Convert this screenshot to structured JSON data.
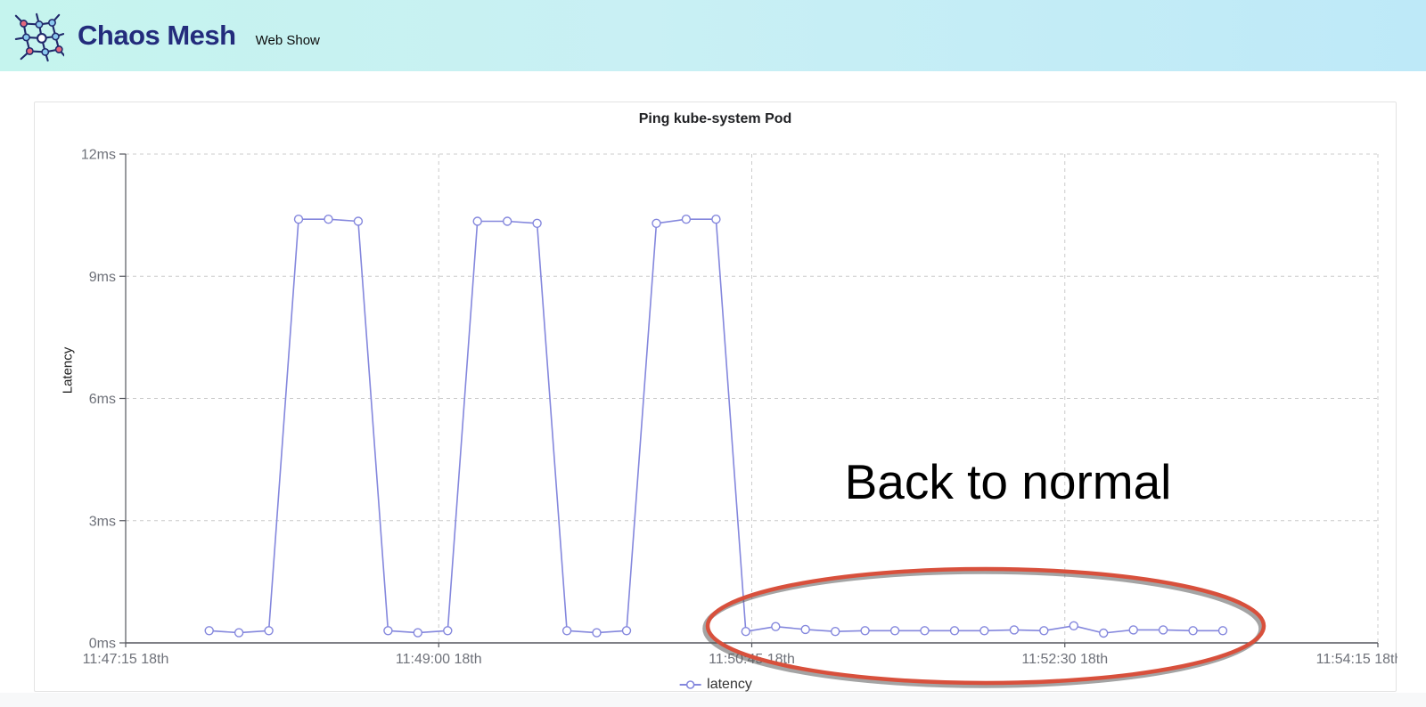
{
  "header": {
    "brand": "Chaos Mesh",
    "subtitle": "Web Show"
  },
  "chart": {
    "annotation": {
      "text": "Back to normal"
    },
    "colors": {
      "series": "#8487dd",
      "marker_fill": "#ffffff",
      "axis": "#55575e",
      "grid": "#cccccc",
      "tick_label": "#6e7179",
      "title": "#202124",
      "annotation_stroke": "#d8503c",
      "annotation_shadow": "#595959",
      "header_gradient_left": "#c5f4ee",
      "header_gradient_right": "#bee9f8",
      "brand_text": "#232c7c"
    }
  },
  "chart_data": {
    "type": "line",
    "title": "Ping kube-system Pod",
    "xlabel": "",
    "ylabel": "Latency",
    "ylim": [
      0,
      12
    ],
    "grid": true,
    "legend_position": "bottom",
    "y_ticks": [
      {
        "label": "0ms",
        "value": 0
      },
      {
        "label": "3ms",
        "value": 3
      },
      {
        "label": "6ms",
        "value": 6
      },
      {
        "label": "9ms",
        "value": 9
      },
      {
        "label": "12ms",
        "value": 12
      }
    ],
    "x_range": [
      "11:47:15",
      "11:54:15"
    ],
    "x_ticks": [
      {
        "label": "11:47:15 18th",
        "time": "11:47:15"
      },
      {
        "label": "11:49:00 18th",
        "time": "11:49:00"
      },
      {
        "label": "11:50:45 18th",
        "time": "11:50:45"
      },
      {
        "label": "11:52:30 18th",
        "time": "11:52:30"
      },
      {
        "label": "11:54:15 18th",
        "time": "11:54:15"
      }
    ],
    "series": [
      {
        "name": "latency",
        "unit": "ms",
        "points": [
          [
            "11:47:43",
            0.3
          ],
          [
            "11:47:53",
            0.25
          ],
          [
            "11:48:03",
            0.3
          ],
          [
            "11:48:13",
            10.4
          ],
          [
            "11:48:23",
            10.4
          ],
          [
            "11:48:33",
            10.35
          ],
          [
            "11:48:43",
            0.3
          ],
          [
            "11:48:53",
            0.25
          ],
          [
            "11:49:03",
            0.3
          ],
          [
            "11:49:13",
            10.35
          ],
          [
            "11:49:23",
            10.35
          ],
          [
            "11:49:33",
            10.3
          ],
          [
            "11:49:43",
            0.3
          ],
          [
            "11:49:53",
            0.25
          ],
          [
            "11:50:03",
            0.3
          ],
          [
            "11:50:13",
            10.3
          ],
          [
            "11:50:23",
            10.4
          ],
          [
            "11:50:33",
            10.4
          ],
          [
            "11:50:43",
            0.28
          ],
          [
            "11:50:53",
            0.4
          ],
          [
            "11:51:03",
            0.33
          ],
          [
            "11:51:13",
            0.28
          ],
          [
            "11:51:23",
            0.3
          ],
          [
            "11:51:33",
            0.3
          ],
          [
            "11:51:43",
            0.3
          ],
          [
            "11:51:53",
            0.3
          ],
          [
            "11:52:03",
            0.3
          ],
          [
            "11:52:13",
            0.32
          ],
          [
            "11:52:23",
            0.3
          ],
          [
            "11:52:33",
            0.42
          ],
          [
            "11:52:43",
            0.24
          ],
          [
            "11:52:53",
            0.32
          ],
          [
            "11:53:03",
            0.32
          ],
          [
            "11:53:13",
            0.3
          ],
          [
            "11:53:23",
            0.3
          ]
        ]
      }
    ]
  }
}
